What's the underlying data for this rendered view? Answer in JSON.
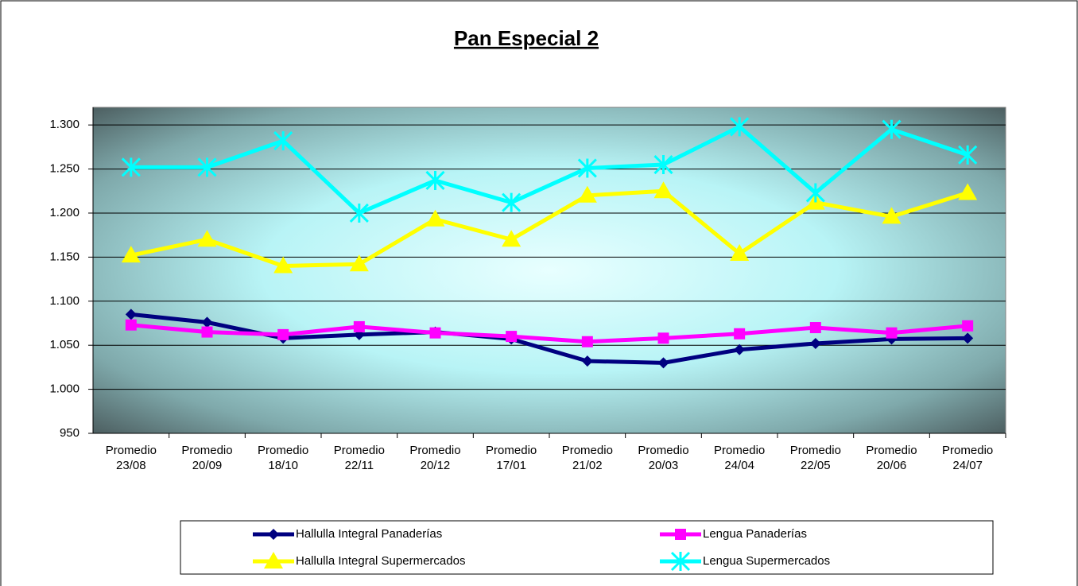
{
  "chart_data": {
    "type": "line",
    "title": "Pan Especial 2",
    "categories": [
      "Promedio 23/08",
      "Promedio 20/09",
      "Promedio 18/10",
      "Promedio 22/11",
      "Promedio 20/12",
      "Promedio 17/01",
      "Promedio 21/02",
      "Promedio 20/03",
      "Promedio 24/04",
      "Promedio 22/05",
      "Promedio 20/06",
      "Promedio 24/07"
    ],
    "series": [
      {
        "name": "Hallulla Integral Panaderías",
        "color": "#000080",
        "marker": "diamond",
        "values": [
          1085,
          1076,
          1058,
          1062,
          1065,
          1057,
          1032,
          1030,
          1045,
          1052,
          1057,
          1058
        ]
      },
      {
        "name": "Lengua Panaderías",
        "color": "#ff00ff",
        "marker": "square",
        "values": [
          1073,
          1065,
          1062,
          1071,
          1064,
          1060,
          1054,
          1058,
          1063,
          1070,
          1064,
          1072
        ]
      },
      {
        "name": "Hallulla Integral Supermercados",
        "color": "#ffff00",
        "marker": "triangle",
        "values": [
          1152,
          1170,
          1140,
          1142,
          1193,
          1170,
          1220,
          1225,
          1154,
          1212,
          1196,
          1223
        ]
      },
      {
        "name": "Lengua Supermercados",
        "color": "#00ffff",
        "marker": "cross",
        "values": [
          1252,
          1252,
          1282,
          1200,
          1237,
          1212,
          1251,
          1255,
          1298,
          1223,
          1295,
          1266
        ]
      }
    ],
    "ylim": [
      950,
      1320
    ],
    "yticks": [
      950,
      {
        "value": 1000,
        "label": "1.000"
      },
      {
        "value": 1050,
        "label": "1.050"
      },
      {
        "value": 1100,
        "label": "1.100"
      },
      {
        "value": 1150,
        "label": "1.150"
      },
      {
        "value": 1200,
        "label": "1.200"
      },
      {
        "value": 1250,
        "label": "1.250"
      },
      {
        "value": 1300,
        "label": "1.300"
      }
    ],
    "grid": true,
    "legend": "bottom"
  }
}
